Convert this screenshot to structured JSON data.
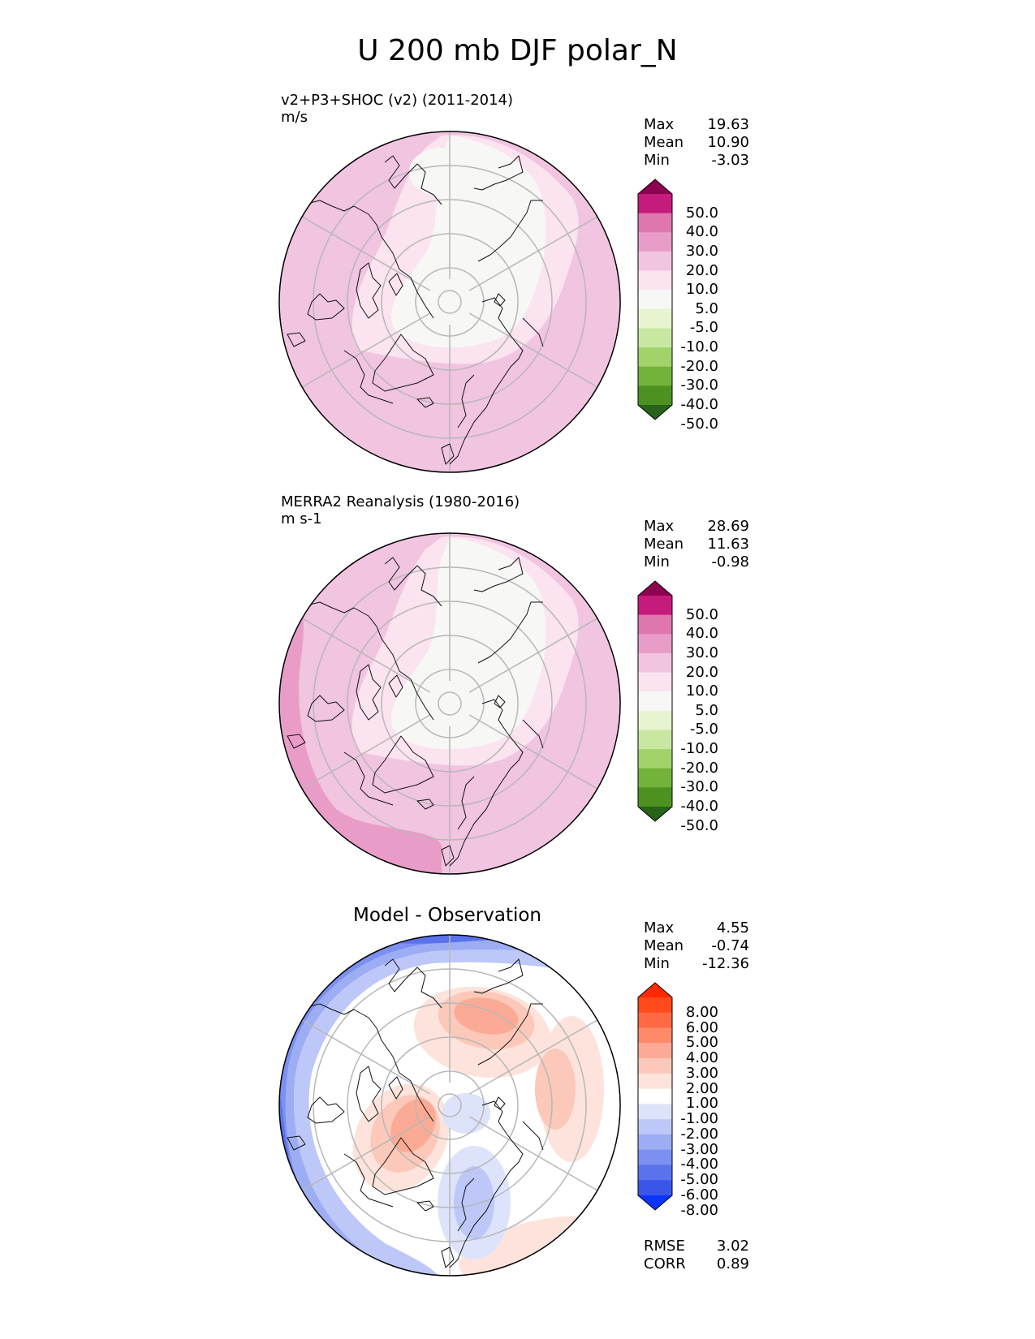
{
  "title": "U 200 mb DJF polar_N",
  "panels": [
    {
      "id": "test",
      "title_line1": "v2+P3+SHOC (v2) (2011-2014)",
      "title_line2": "m/s",
      "stats": {
        "max_label": "Max",
        "max": "19.63",
        "mean_label": "Mean",
        "mean": "10.90",
        "min_label": "Min",
        "min": "-3.03"
      },
      "colorbar": {
        "levels": [
          "50.0",
          "40.0",
          "30.0",
          "20.0",
          "10.0",
          "5.0",
          "-5.0",
          "-10.0",
          "-20.0",
          "-30.0",
          "-40.0",
          "-50.0"
        ],
        "colors": [
          "#8e0152",
          "#c51b7d",
          "#de77ae",
          "#ea9cc8",
          "#f1c4e0",
          "#fbe3f0",
          "#f7f7f6",
          "#e6f5d0",
          "#c8e7a1",
          "#a1d36a",
          "#74b33b",
          "#4d9221",
          "#276419"
        ]
      }
    },
    {
      "id": "reference",
      "title_line1": "MERRA2 Reanalysis (1980-2016)",
      "title_line2": "m s-1",
      "stats": {
        "max_label": "Max",
        "max": "28.69",
        "mean_label": "Mean",
        "mean": "11.63",
        "min_label": "Min",
        "min": "-0.98"
      },
      "colorbar": {
        "levels": [
          "50.0",
          "40.0",
          "30.0",
          "20.0",
          "10.0",
          "5.0",
          "-5.0",
          "-10.0",
          "-20.0",
          "-30.0",
          "-40.0",
          "-50.0"
        ],
        "colors": [
          "#8e0152",
          "#c51b7d",
          "#de77ae",
          "#ea9cc8",
          "#f1c4e0",
          "#fbe3f0",
          "#f7f7f6",
          "#e6f5d0",
          "#c8e7a1",
          "#a1d36a",
          "#74b33b",
          "#4d9221",
          "#276419"
        ]
      }
    },
    {
      "id": "difference",
      "title": "Model - Observation",
      "stats": {
        "max_label": "Max",
        "max": "4.55",
        "mean_label": "Mean",
        "mean": "-0.74",
        "min_label": "Min",
        "min": "-12.36"
      },
      "colorbar": {
        "levels": [
          "8.00",
          "6.00",
          "5.00",
          "4.00",
          "3.00",
          "2.00",
          "1.00",
          "-1.00",
          "-2.00",
          "-3.00",
          "-4.00",
          "-5.00",
          "-6.00",
          "-8.00"
        ],
        "colors": [
          "#ff2a00",
          "#ff4a1c",
          "#ff6a45",
          "#ff8a6a",
          "#fbab95",
          "#fbc8b9",
          "#fde3db",
          "#ffffff",
          "#dde3fb",
          "#bdc8f8",
          "#9cadf4",
          "#7b90f0",
          "#5a73ec",
          "#3a56ea",
          "#0a34ff"
        ]
      },
      "rmse_label": "RMSE",
      "rmse": "3.02",
      "corr_label": "CORR",
      "corr": "0.89"
    }
  ],
  "map_colors": {
    "test": {
      "base": "#f1c4e0",
      "light": "#fbe3f0",
      "white": "#f7f7f6"
    },
    "reference": {
      "base": "#f1c4e0",
      "light": "#fbe3f0",
      "white": "#f7f7f6",
      "strong": "#ea9cc8"
    },
    "difference": {
      "red1": "#fde3db",
      "red2": "#fbc8b9",
      "red3": "#fbab95",
      "red4": "#ff8a6a",
      "blue1": "#dde3fb",
      "blue2": "#bdc8f8",
      "blue3": "#9cadf4",
      "blue4": "#7b90f0",
      "blue5": "#5a73ec",
      "blue6": "#0a34ff"
    }
  }
}
